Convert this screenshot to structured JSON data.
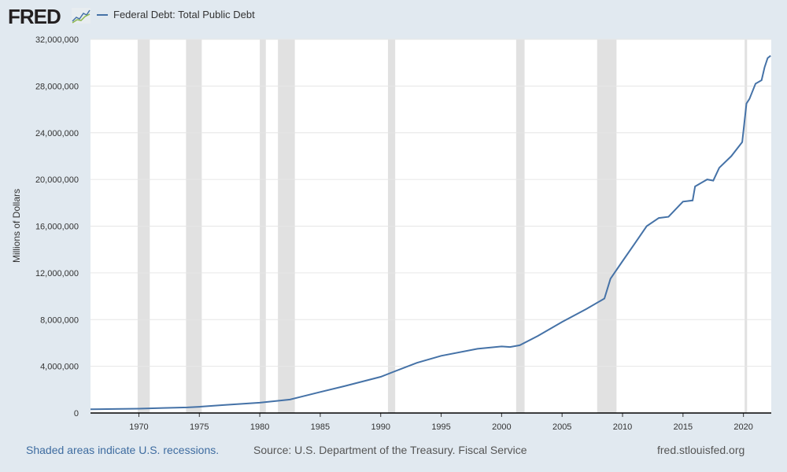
{
  "header": {
    "logo": "FRED",
    "series_title": "Federal Debt: Total Public Debt"
  },
  "footer": {
    "recession_note": "Shaded areas indicate U.S. recessions.",
    "source": "Source: U.S. Department of the Treasury. Fiscal Service",
    "site": "fred.stlouisfed.org"
  },
  "colors": {
    "line": "#4572a7",
    "recession": "#e1e1e1"
  },
  "chart_data": {
    "type": "line",
    "title": "Federal Debt: Total Public Debt",
    "ylabel": "Millions of Dollars",
    "xlim": [
      1966,
      2022.3
    ],
    "ylim": [
      0,
      32000000
    ],
    "x_ticks": [
      "1970",
      "1975",
      "1980",
      "1985",
      "1990",
      "1995",
      "2000",
      "2005",
      "2010",
      "2015",
      "2020"
    ],
    "y_ticks": [
      "0",
      "4,000,000",
      "8,000,000",
      "12,000,000",
      "16,000,000",
      "20,000,000",
      "24,000,000",
      "28,000,000",
      "32,000,000"
    ],
    "recessions": [
      [
        1969.9,
        1970.9
      ],
      [
        1973.9,
        1975.2
      ],
      [
        1980.0,
        1980.5
      ],
      [
        1981.5,
        1982.9
      ],
      [
        1990.6,
        1991.2
      ],
      [
        2001.2,
        2001.9
      ],
      [
        2007.9,
        2009.5
      ],
      [
        2020.1,
        2020.3
      ]
    ],
    "series": [
      {
        "name": "Federal Debt: Total Public Debt",
        "x": [
          1966,
          1968,
          1970,
          1972,
          1974,
          1975,
          1977,
          1980,
          1982.5,
          1985,
          1987,
          1990,
          1991,
          1993,
          1995,
          1998,
          2000,
          2000.7,
          2001.5,
          2003,
          2005,
          2007,
          2008.5,
          2009,
          2010,
          2011,
          2012,
          2013,
          2013.8,
          2015,
          2015.8,
          2016,
          2017,
          2017.5,
          2018,
          2019,
          2019.9,
          2020.25,
          2020.5,
          2021,
          2021.5,
          2021.75,
          2022,
          2022.25
        ],
        "y": [
          320000,
          345000,
          370000,
          430000,
          480000,
          530000,
          680000,
          880000,
          1150000,
          1800000,
          2300000,
          3100000,
          3500000,
          4300000,
          4900000,
          5500000,
          5700000,
          5650000,
          5800000,
          6600000,
          7800000,
          8900000,
          9800000,
          11500000,
          13000000,
          14500000,
          16000000,
          16700000,
          16800000,
          18100000,
          18200000,
          19400000,
          20000000,
          19900000,
          21000000,
          22000000,
          23200000,
          26500000,
          26900000,
          28200000,
          28500000,
          29600000,
          30400000,
          30600000
        ]
      }
    ]
  }
}
